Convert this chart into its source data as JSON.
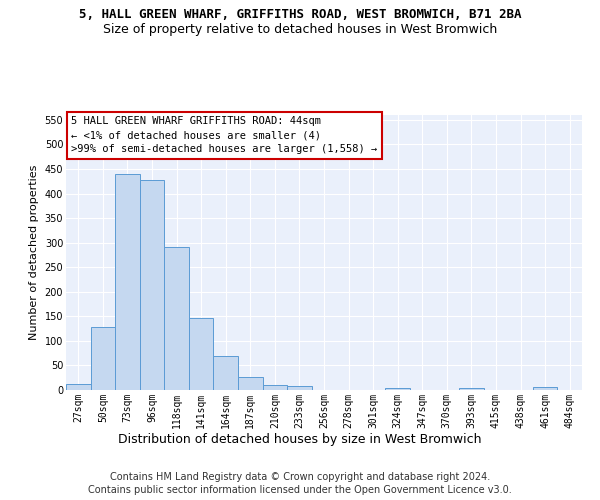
{
  "title1": "5, HALL GREEN WHARF, GRIFFITHS ROAD, WEST BROMWICH, B71 2BA",
  "title2": "Size of property relative to detached houses in West Bromwich",
  "xlabel": "Distribution of detached houses by size in West Bromwich",
  "ylabel": "Number of detached properties",
  "footer1": "Contains HM Land Registry data © Crown copyright and database right 2024.",
  "footer2": "Contains public sector information licensed under the Open Government Licence v3.0.",
  "bar_labels": [
    "27sqm",
    "50sqm",
    "73sqm",
    "96sqm",
    "118sqm",
    "141sqm",
    "164sqm",
    "187sqm",
    "210sqm",
    "233sqm",
    "256sqm",
    "278sqm",
    "301sqm",
    "324sqm",
    "347sqm",
    "370sqm",
    "393sqm",
    "415sqm",
    "438sqm",
    "461sqm",
    "484sqm"
  ],
  "bar_values": [
    12,
    128,
    440,
    427,
    291,
    147,
    69,
    26,
    11,
    8,
    0,
    0,
    0,
    5,
    0,
    0,
    5,
    0,
    0,
    6,
    0
  ],
  "bar_color": "#c5d8f0",
  "bar_edge_color": "#5b9bd5",
  "ylim": [
    0,
    560
  ],
  "yticks": [
    0,
    50,
    100,
    150,
    200,
    250,
    300,
    350,
    400,
    450,
    500,
    550
  ],
  "annotation_line1": "5 HALL GREEN WHARF GRIFFITHS ROAD: 44sqm",
  "annotation_line2": "← <1% of detached houses are smaller (4)",
  "annotation_line3": ">99% of semi-detached houses are larger (1,558) →",
  "annotation_box_color": "#ffffff",
  "annotation_box_edge_color": "#cc0000",
  "bg_color": "#eaf0fb",
  "grid_color": "#ffffff",
  "title1_fontsize": 9,
  "title2_fontsize": 9,
  "ylabel_fontsize": 8,
  "xlabel_fontsize": 9,
  "tick_fontsize": 7,
  "footer_fontsize": 7
}
